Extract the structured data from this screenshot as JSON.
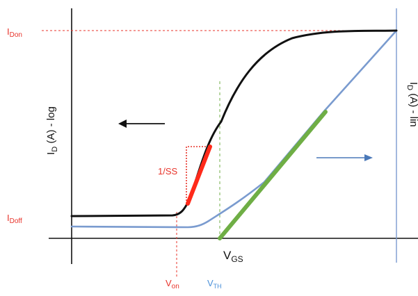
{
  "colors": {
    "log_curve": "#111111",
    "linear_curve": "#7a9bcf",
    "subthreshold_slope": "#ff2a1a",
    "linear_fit": "#6fae45",
    "red_label": "#e8332a",
    "blue_label": "#4a90d9",
    "vth_guide": "#6fae45",
    "right_axis": "#7a9bcf"
  },
  "labels": {
    "idon_main": "I",
    "idon_sub": "Don",
    "idoff_main": "I",
    "idoff_sub": "Doff",
    "left_axis_main": "I",
    "left_axis_sub": "D",
    "left_axis_rest": " (A) - log",
    "right_axis_main": "I",
    "right_axis_sub": "D",
    "right_axis_rest": " (A) - lin",
    "ss": "1/SS",
    "vgs_main": "V",
    "vgs_sub": "GS",
    "von_main": "V",
    "von_sub": "on",
    "vth_main": "V",
    "vth_sub": "TH"
  },
  "icons": {
    "left_arrow": "arrow-left-icon",
    "right_arrow": "arrow-right-icon"
  }
}
